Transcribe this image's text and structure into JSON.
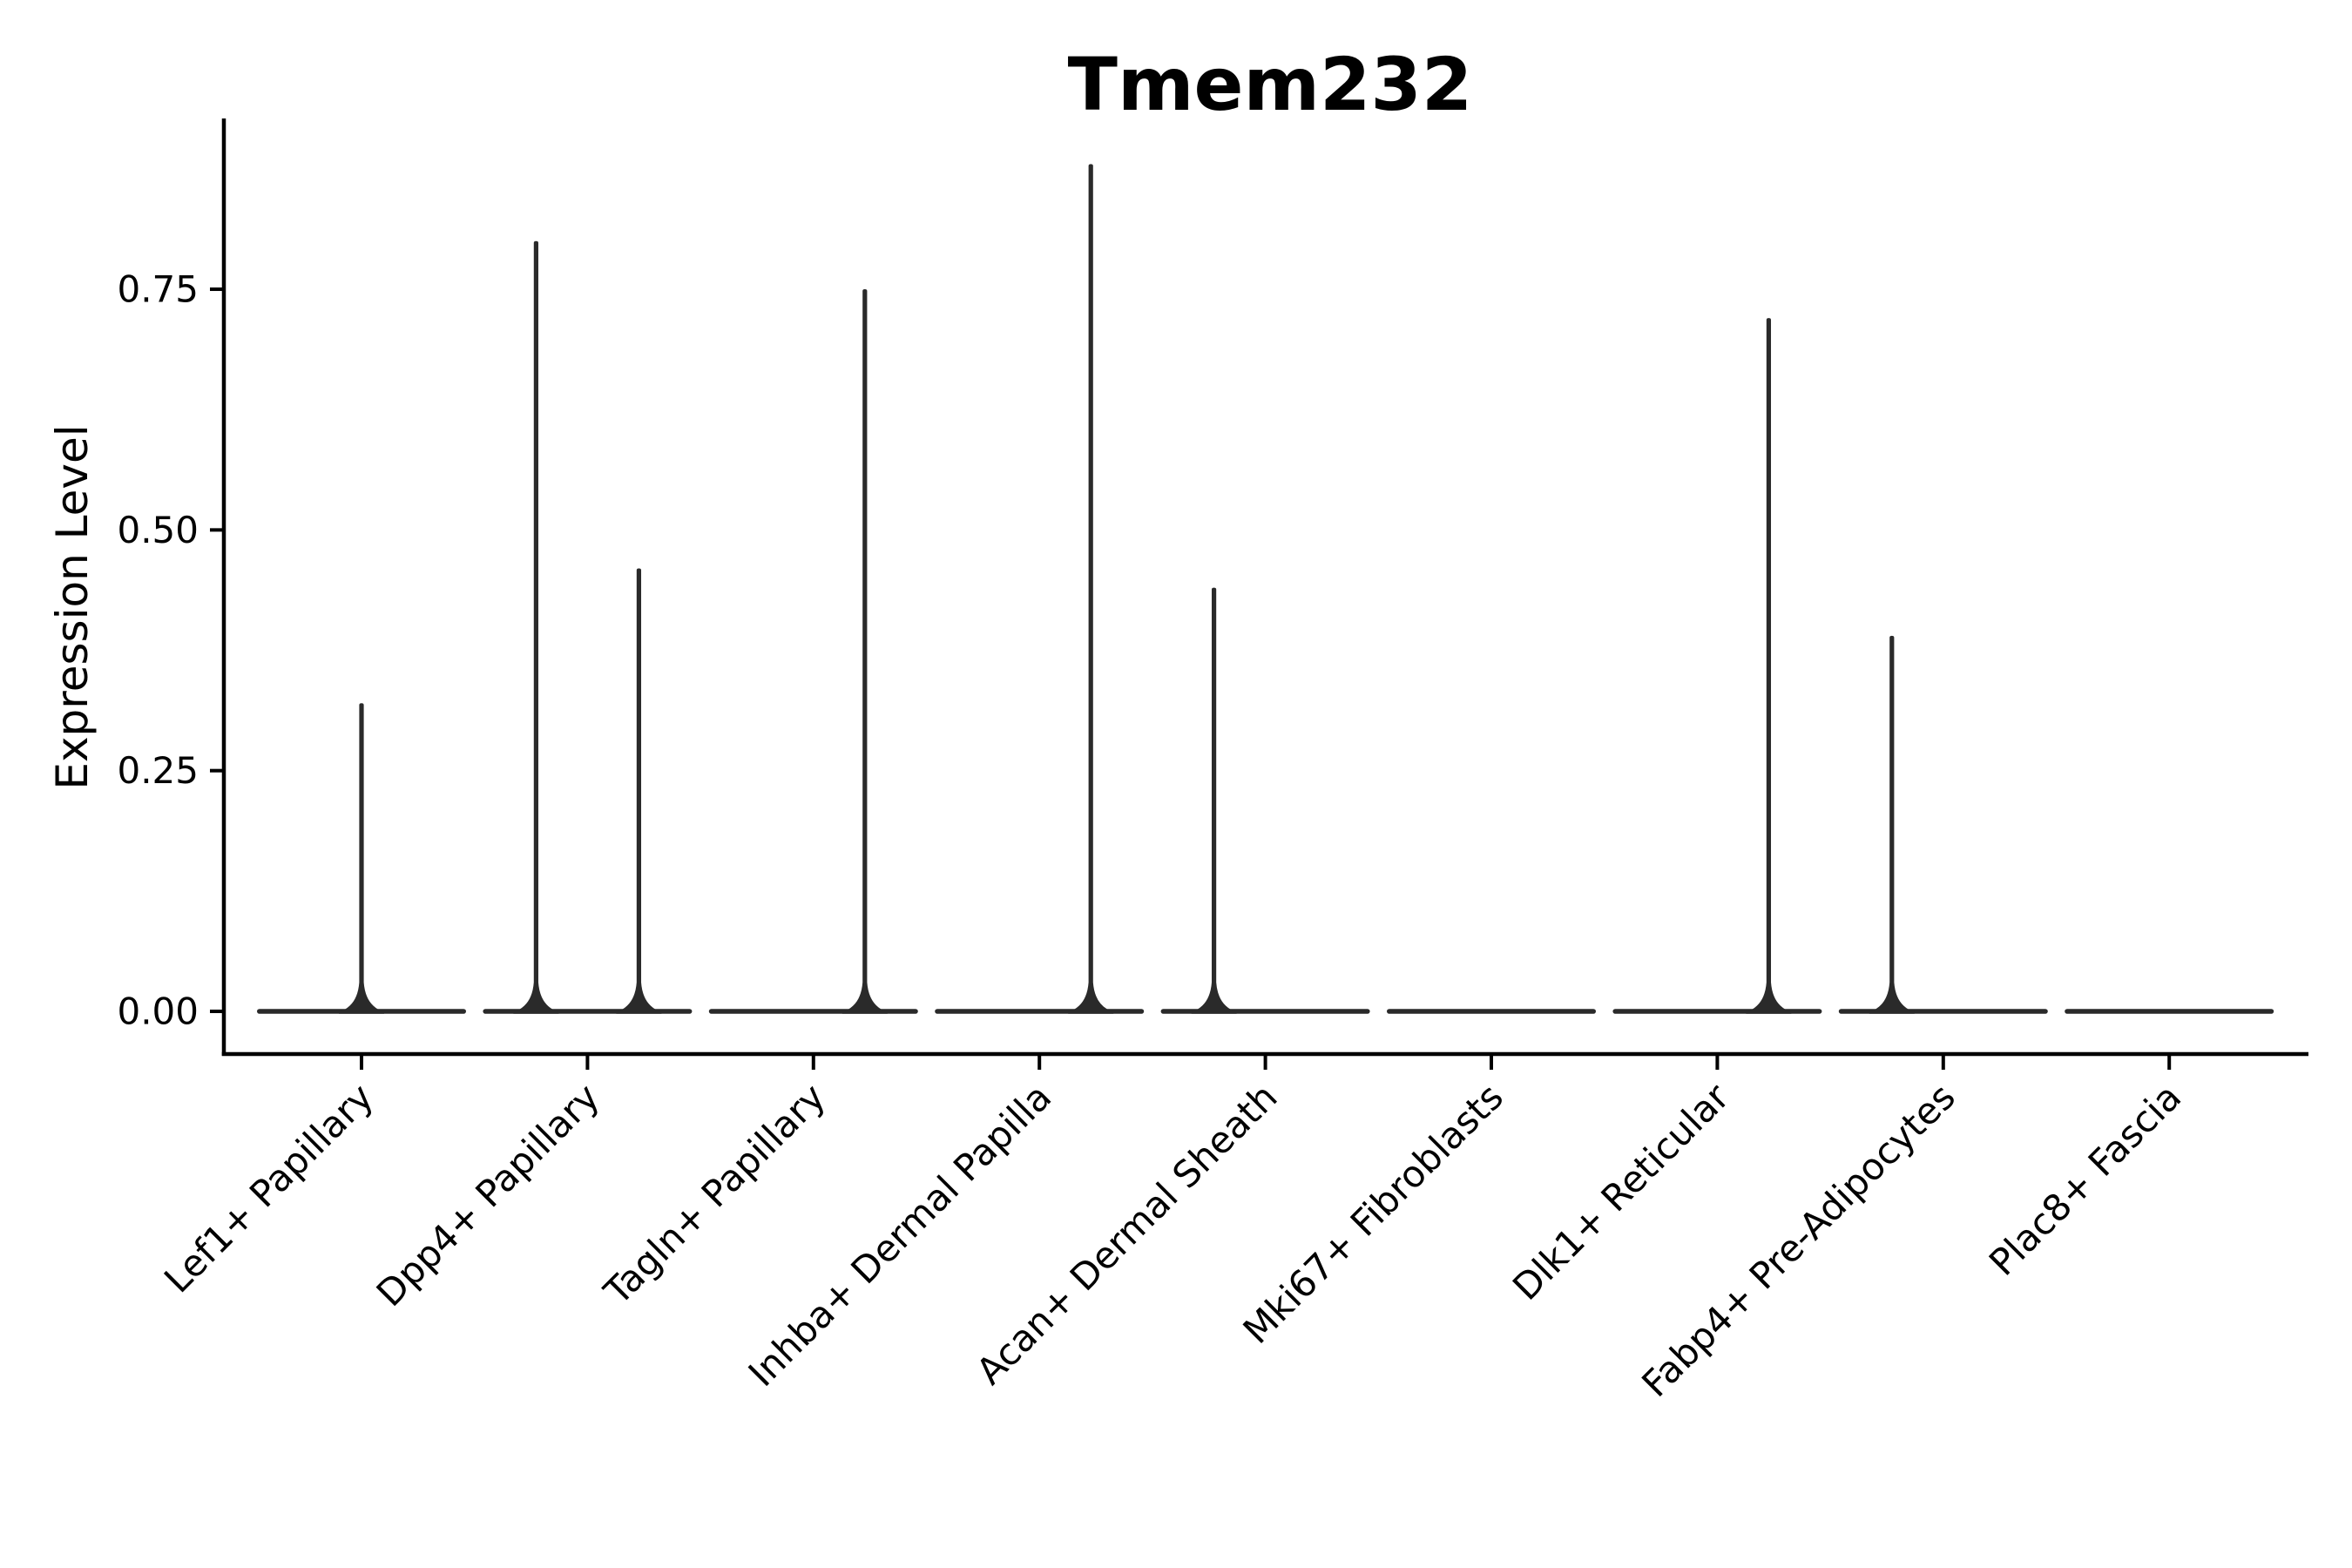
{
  "figure": {
    "title": "Tmem232",
    "ylabel": "Expression Level",
    "xlabel": ""
  },
  "chart_data": {
    "type": "violin",
    "title": "Tmem232",
    "xlabel": "",
    "ylabel": "Expression Level",
    "categories": [
      "Lef1+ Papillary",
      "Dpp4+ Papillary",
      "Tagln+ Papillary",
      "Inhba+ Dermal Papilla",
      "Acan+ Dermal Sheath",
      "Mki67+ Fibroblasts",
      "Dlk1+ Reticular",
      "Fabp4+ Pre-Adipocytes",
      "Plac8+ Fascia"
    ],
    "ytick_labels": [
      "0.00",
      "0.25",
      "0.50",
      "0.75"
    ],
    "ytick_values": [
      0,
      0.25,
      0.5,
      0.75
    ],
    "ylim": [
      -0.044,
      0.927
    ],
    "grid": false,
    "legend": null,
    "violins": [
      {
        "category": "Lef1+ Papillary",
        "base_at": 0,
        "needles": [
          {
            "value": 0.32,
            "offset": 0
          }
        ]
      },
      {
        "category": "Dpp4+ Papillary",
        "base_at": 0,
        "needles": [
          {
            "value": 0.8,
            "offset": -0.2275
          },
          {
            "value": 0.46,
            "offset": 0.2275
          }
        ]
      },
      {
        "category": "Tagln+ Papillary",
        "base_at": 0,
        "needles": [
          {
            "value": 0.75,
            "offset": 0.2275
          }
        ]
      },
      {
        "category": "Inhba+ Dermal Papilla",
        "base_at": 0,
        "needles": [
          {
            "value": 0.88,
            "offset": 0.2275
          }
        ]
      },
      {
        "category": "Acan+ Dermal Sheath",
        "base_at": 0,
        "needles": [
          {
            "value": 0.44,
            "offset": -0.2275
          }
        ]
      },
      {
        "category": "Mki67+ Fibroblasts",
        "base_at": 0,
        "needles": []
      },
      {
        "category": "Dlk1+ Reticular",
        "base_at": 0,
        "needles": [
          {
            "value": 0.72,
            "offset": 0.2275
          }
        ]
      },
      {
        "category": "Fabp4+ Pre-Adipocytes",
        "base_at": 0,
        "needles": [
          {
            "value": 0.39,
            "offset": -0.2275
          }
        ]
      },
      {
        "category": "Plac8+ Fascia",
        "base_at": 0,
        "needles": []
      }
    ],
    "colors": {
      "violin": "#2a2a2a",
      "axis": "#000000",
      "text": "#000000",
      "background": "#ffffff"
    }
  }
}
